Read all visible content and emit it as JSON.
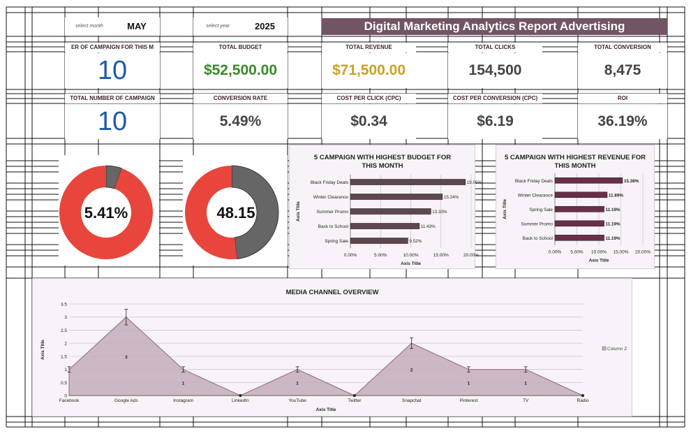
{
  "selectors": {
    "month_label": "select month",
    "month_value": "MAY",
    "year_label": "select year",
    "year_value": "2025"
  },
  "report_title": "Digital Marketing Analytics Report Advertising",
  "kpis_row1": [
    {
      "label": "ER OF CAMPAIGN FOR THIS M",
      "value": "10",
      "color": "#1f5aa6"
    },
    {
      "label": "TOTAL BUDGET",
      "value": "$52,500.00",
      "color": "#3a8a2a"
    },
    {
      "label": "TOTAL REVENUE",
      "value": "$71,500.00",
      "color": "#c9a227"
    },
    {
      "label": "TOTAL CLICKS",
      "value": "154,500",
      "color": "#444444"
    },
    {
      "label": "TOTAL CONVERSION",
      "value": "8,475",
      "color": "#444444"
    }
  ],
  "kpis_row2": [
    {
      "label": "TOTAL NUMBER OF CAMPAIGN",
      "value": "10",
      "color": "#1f5aa6"
    },
    {
      "label": "CONVERSION RATE",
      "value": "5.49%",
      "color": "#444444"
    },
    {
      "label": "COST PER CLICK (CPC)",
      "value": "$0.34",
      "color": "#444444"
    },
    {
      "label": "COST PER CONVERSION (CPC)",
      "value": "$6.19",
      "color": "#444444"
    },
    {
      "label": "ROI",
      "value": "36.19%",
      "color": "#444444"
    }
  ],
  "donuts": [
    {
      "label": "5.41%",
      "fraction": 0.0541,
      "fill_color": "#666666",
      "rest_color": "#e8453c"
    },
    {
      "label": "48.15",
      "fraction": 0.4815,
      "fill_color": "#666666",
      "rest_color": "#e8453c"
    }
  ],
  "chart_data": [
    {
      "type": "bar",
      "orientation": "horizontal",
      "title": "5 CAMPAIGN WITH HIGHEST BUDGET FOR THIS MONTH",
      "categories": [
        "Black Friday Deals",
        "Winter Clearance",
        "Summer Promo",
        "Back to School",
        "Spring Sale"
      ],
      "values": [
        19.05,
        15.24,
        13.33,
        11.43,
        9.52
      ],
      "data_labels": [
        "19.05%",
        "15.24%",
        "13.33%",
        "11.43%",
        "9.52%"
      ],
      "xlim": [
        0,
        20
      ],
      "xticks": [
        "0.00%",
        "5.00%",
        "10.00%",
        "15.00%",
        "20.00%"
      ],
      "xlabel": "Axis Title",
      "ylabel": "Axis Title",
      "bar_color": "#5e4750"
    },
    {
      "type": "bar",
      "orientation": "horizontal",
      "title": "5 CAMPAIGN WITH HIGHEST REVENUE FOR THIS MONTH",
      "categories": [
        "Black Friday Deals",
        "Winter Clearance",
        "Spring Sale",
        "Summer Promo",
        "Back to School"
      ],
      "values": [
        15.38,
        11.89,
        11.19,
        11.19,
        11.19
      ],
      "data_labels": [
        "15.38%",
        "11.89%",
        "11.19%",
        "11.19%",
        "11.19%"
      ],
      "xlim": [
        0,
        20
      ],
      "xticks": [
        "0.00%",
        "5.00%",
        "10.00%",
        "15.00%",
        "20.00%"
      ],
      "xlabel": "Axis Title",
      "ylabel": "Axis Title",
      "bar_color": "#6b2f4a"
    },
    {
      "type": "area",
      "title": "MEDIA CHANNEL OVERVIEW",
      "categories": [
        "Facebook",
        "Google Ads",
        "Instagram",
        "LinkedIn",
        "YouTube",
        "Twitter",
        "Snapchat",
        "Pinterest",
        "TV",
        "Radio"
      ],
      "series": [
        {
          "name": "Column Z",
          "values": [
            1,
            3,
            1,
            0,
            1,
            0,
            2,
            1,
            1,
            0
          ]
        }
      ],
      "data_labels": [
        "",
        "3",
        "1",
        "",
        "1",
        "",
        "2",
        "1",
        "1",
        ""
      ],
      "ylim": [
        0,
        3.5
      ],
      "yticks": [
        "0",
        "0.5",
        "1",
        "1.5",
        "2",
        "2.5",
        "3",
        "3.5"
      ],
      "xlabel": "Axis Title",
      "ylabel": "Axis Title",
      "error_bars": true,
      "fill_color": "#c4adb8",
      "line_color": "#8e6a7c"
    }
  ]
}
